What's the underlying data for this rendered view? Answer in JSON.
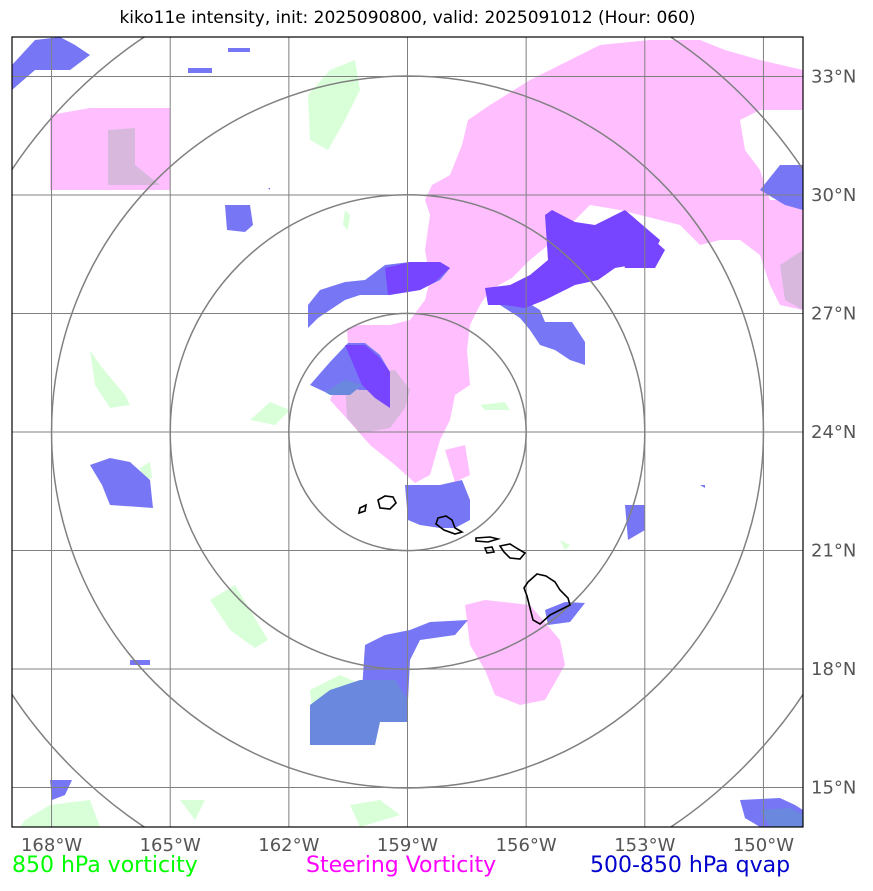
{
  "title": "kiko11e intensity, init: 2025090800, valid: 2025091012 (Hour: 060)",
  "map": {
    "lon_labels": [
      "168°W",
      "165°W",
      "162°W",
      "159°W",
      "156°W",
      "153°W",
      "150°W"
    ],
    "lat_labels": [
      "33°N",
      "30°N",
      "27°N",
      "24°N",
      "21°N",
      "18°N",
      "15°N"
    ],
    "lon_values": [
      -168,
      -165,
      -162,
      -159,
      -156,
      -153,
      -150
    ],
    "lat_values": [
      33,
      30,
      27,
      24,
      21,
      18,
      15
    ],
    "extent": {
      "lon_min": -169,
      "lon_max": -149,
      "lat_min": 14,
      "lat_max": 34
    },
    "storm_center": {
      "lon": -159,
      "lat": 24
    },
    "range_rings_deg": [
      3,
      6,
      9,
      12
    ]
  },
  "legend": {
    "green": {
      "label": "850 hPa vorticity",
      "color": "#00ff00"
    },
    "pink": {
      "label": "Steering Vorticity",
      "color": "#ff00ff"
    },
    "blue": {
      "label": "500-850 hPa qvap",
      "color": "#0000cc"
    }
  },
  "colors": {
    "vorticity_fill": "#d9ffd9",
    "steering_fill": "#ffbfff",
    "qvap_fill": "#7777f5",
    "qvap_dark_fill": "#7744ff",
    "overlap_fill": "#6a88dd",
    "mix_fill": "#d8b8dd"
  }
}
